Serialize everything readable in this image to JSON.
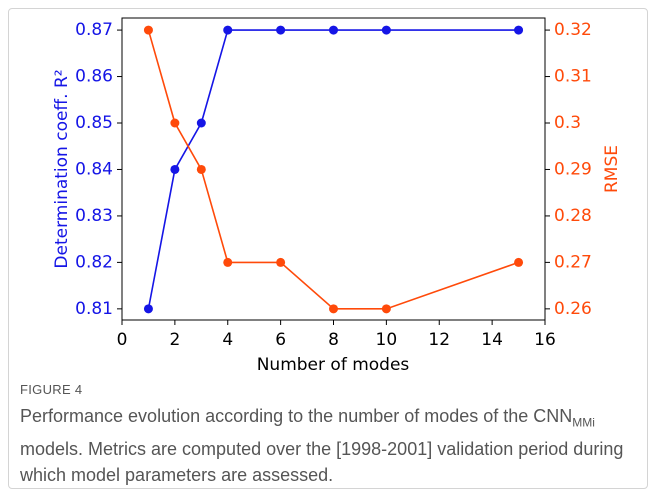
{
  "chart_data": {
    "type": "line",
    "x": [
      1,
      2,
      3,
      4,
      6,
      8,
      10,
      15
    ],
    "xlabel": "Number of modes",
    "ylabel": "Determination coeff. R²",
    "y2label": "RMSE",
    "series": [
      {
        "name": "Determination coeff. R²",
        "color": "#1515e6",
        "values": [
          0.81,
          0.84,
          0.85,
          0.87,
          0.87,
          0.87,
          0.87,
          0.87
        ]
      },
      {
        "name": "RMSE",
        "color": "#ff4a0a",
        "axis": "y2",
        "values": [
          0.32,
          0.3,
          0.29,
          0.27,
          0.27,
          0.26,
          0.26,
          0.27
        ]
      }
    ],
    "xlim": [
      0,
      16
    ],
    "xticks": [
      0,
      2,
      4,
      6,
      8,
      10,
      12,
      14,
      16
    ],
    "ylim": [
      0.8076,
      0.8726
    ],
    "yticks": [
      0.81,
      0.82,
      0.83,
      0.84,
      0.85,
      0.86,
      0.87
    ],
    "y2lim": [
      0.2576,
      0.3226
    ],
    "y2ticks": [
      0.26,
      0.27,
      0.28,
      0.29,
      0.3,
      0.31,
      0.32
    ],
    "grid": false
  },
  "caption": {
    "label": "FIGURE 4",
    "text_before": "Performance evolution according to the number of modes of the ",
    "model": "CNN",
    "model_subscript": "MMi",
    "text_after": " models. Metrics are computed over the [1998-2001] validation period during which model parameters are assessed."
  }
}
